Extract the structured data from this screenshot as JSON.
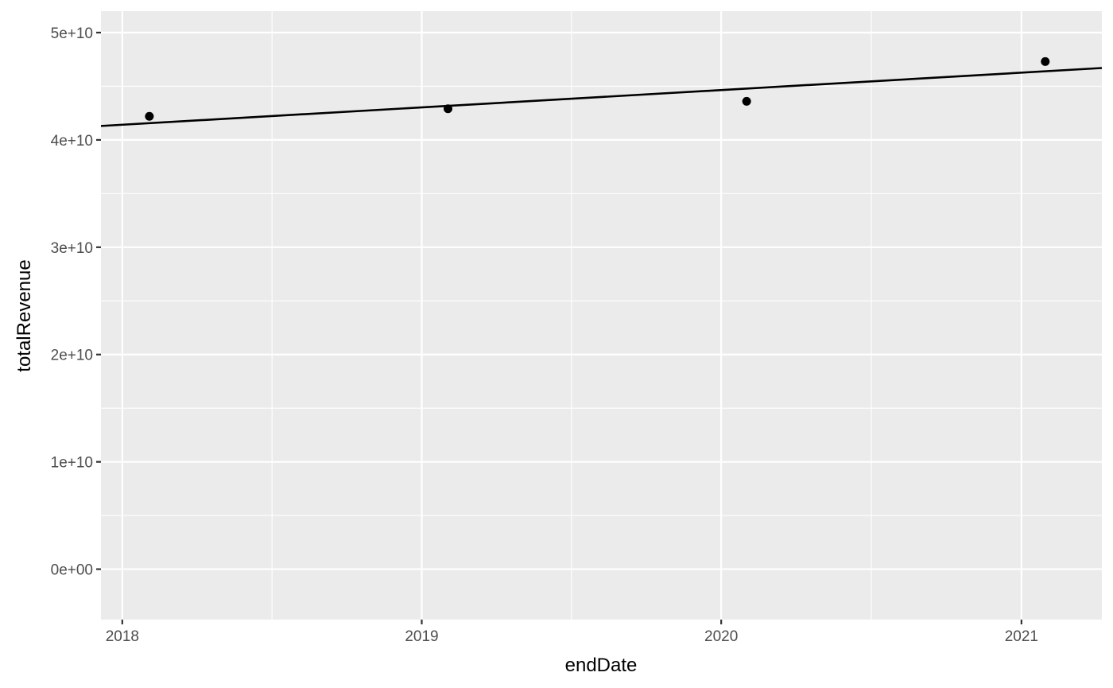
{
  "chart_data": {
    "type": "scatter",
    "xlabel": "endDate",
    "ylabel": "totalRevenue",
    "x_scale": "date",
    "x_ticks": [
      "2018",
      "2019",
      "2020",
      "2021"
    ],
    "y_ticks": [
      "0e+00",
      "1e+10",
      "2e+10",
      "3e+10",
      "4e+10",
      "5e+10"
    ],
    "xlim": [
      "2017-12-06",
      "2021-04-09"
    ],
    "ylim": [
      -4700000000,
      52000000000
    ],
    "grid": true,
    "legend": "none",
    "series": [
      {
        "points": [
          {
            "x": "2018-02-03",
            "y": 42200000000
          },
          {
            "x": "2019-02-02",
            "y": 42900000000
          },
          {
            "x": "2020-02-01",
            "y": 43600000000
          },
          {
            "x": "2021-01-30",
            "y": 47300000000
          }
        ]
      }
    ],
    "trend_line": {
      "type": "linear",
      "endpoints": [
        {
          "x": "2017-12-06",
          "y": 41300000000
        },
        {
          "x": "2021-04-09",
          "y": 46700000000
        }
      ]
    },
    "colors": {
      "panel_background": "#ebebeb",
      "grid": "#ffffff",
      "points": "#000000",
      "line": "#000000",
      "tick_text": "#4d4d4d",
      "axis_title": "#000000"
    }
  }
}
